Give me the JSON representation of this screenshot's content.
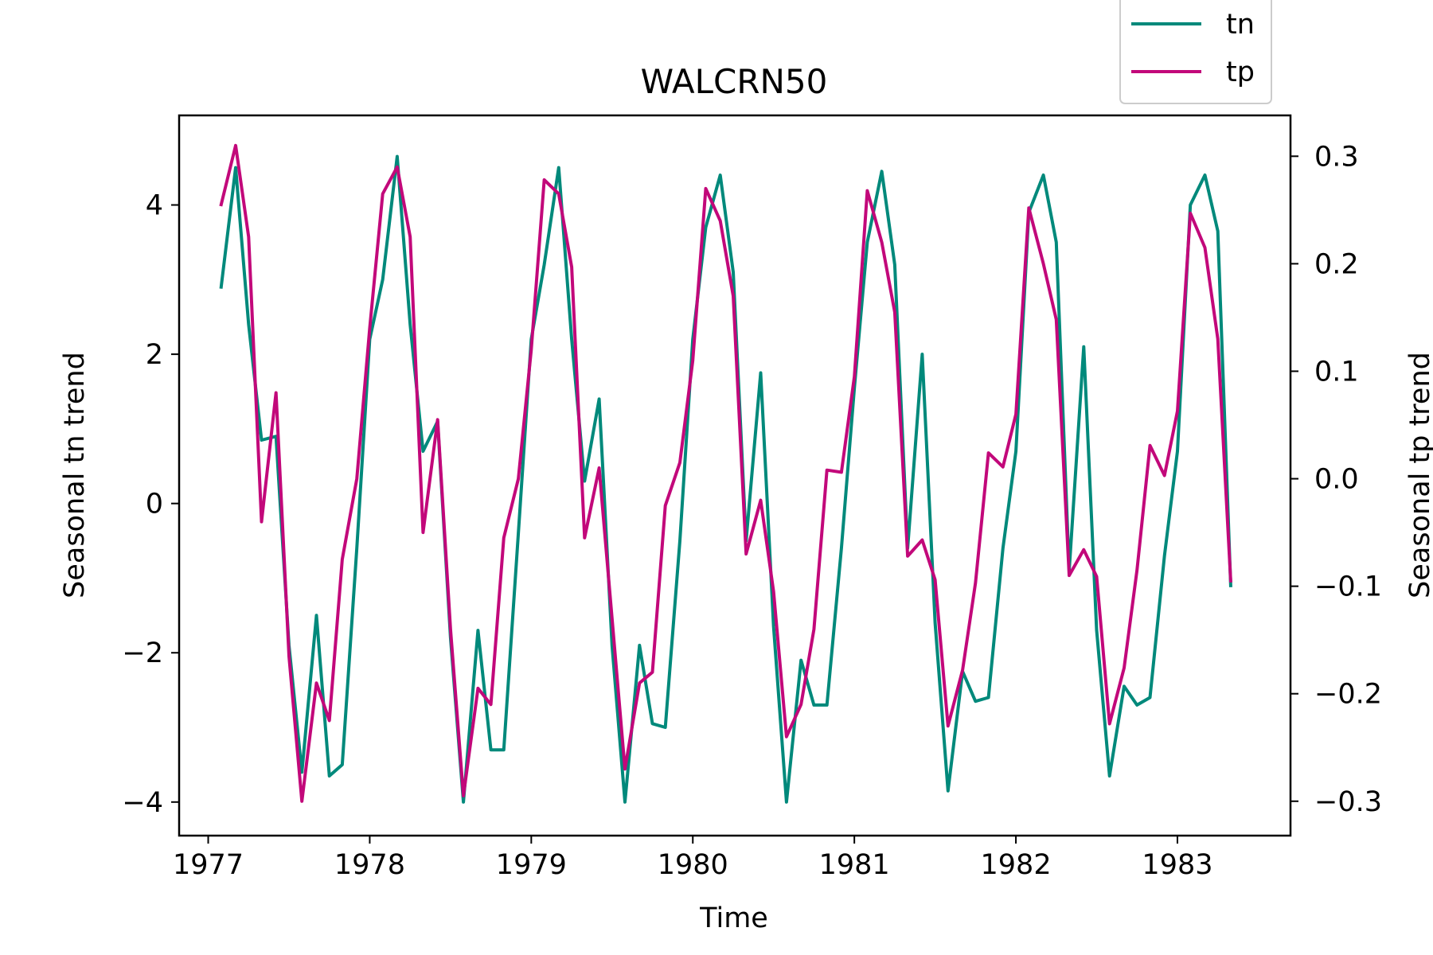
{
  "chart_data": {
    "type": "line",
    "title": "WALCRN50",
    "xlabel": "Time",
    "ylabel_left": "Seasonal tn trend",
    "ylabel_right": "Seasonal tp trend",
    "x_ticks": [
      "1977",
      "1978",
      "1979",
      "1980",
      "1981",
      "1982",
      "1983"
    ],
    "x_tick_values": [
      1977,
      1978,
      1979,
      1980,
      1981,
      1982,
      1983
    ],
    "y_left_ticks": [
      "−4",
      "−2",
      "0",
      "2",
      "4"
    ],
    "y_left_tick_values": [
      -4,
      -2,
      0,
      2,
      4
    ],
    "y_right_ticks": [
      "−0.3",
      "−0.2",
      "−0.1",
      "0.0",
      "0.1",
      "0.2",
      "0.3"
    ],
    "y_right_tick_values": [
      -0.3,
      -0.2,
      -0.1,
      0.0,
      0.1,
      0.2,
      0.3
    ],
    "xlim": [
      1976.82,
      1983.7
    ],
    "ylim_left": [
      -4.45,
      5.2
    ],
    "ylim_right": [
      -0.332,
      0.338
    ],
    "grid": false,
    "legend_placement": "top-right, outside axes",
    "series": [
      {
        "name": "tn",
        "axis": "left",
        "color": "#00897b",
        "x": [
          1977.08,
          1977.17,
          1977.25,
          1977.33,
          1977.42,
          1977.5,
          1977.58,
          1977.67,
          1977.75,
          1977.83,
          1977.92,
          1978.0,
          1978.08,
          1978.17,
          1978.25,
          1978.33,
          1978.42,
          1978.5,
          1978.58,
          1978.67,
          1978.75,
          1978.83,
          1978.92,
          1979.0,
          1979.08,
          1979.17,
          1979.25,
          1979.33,
          1979.42,
          1979.5,
          1979.58,
          1979.67,
          1979.75,
          1979.83,
          1979.92,
          1980.0,
          1980.08,
          1980.17,
          1980.25,
          1980.33,
          1980.42,
          1980.5,
          1980.58,
          1980.67,
          1980.75,
          1980.83,
          1980.92,
          1981.0,
          1981.08,
          1981.17,
          1981.25,
          1981.33,
          1981.42,
          1981.5,
          1981.58,
          1981.67,
          1981.75,
          1981.83,
          1981.92,
          1982.0,
          1982.08,
          1982.17,
          1982.25,
          1982.33,
          1982.42,
          1982.5,
          1982.58,
          1982.67,
          1982.75,
          1982.83,
          1982.92,
          1983.0,
          1983.08,
          1983.17,
          1983.25,
          1983.33
        ],
        "y": [
          2.9,
          4.5,
          2.4,
          0.85,
          0.9,
          -1.9,
          -3.6,
          -1.5,
          -3.65,
          -3.5,
          -0.6,
          2.2,
          3.0,
          4.65,
          2.4,
          0.7,
          1.1,
          -1.8,
          -4.0,
          -1.7,
          -3.3,
          -3.3,
          -0.4,
          2.2,
          3.2,
          4.5,
          2.2,
          0.3,
          1.4,
          -1.9,
          -4.0,
          -1.9,
          -2.95,
          -3.0,
          -0.5,
          2.2,
          3.7,
          4.4,
          3.1,
          -0.5,
          1.75,
          -1.65,
          -4.0,
          -2.1,
          -2.7,
          -2.7,
          -0.6,
          1.55,
          3.5,
          4.45,
          3.2,
          -0.6,
          2.0,
          -1.6,
          -3.85,
          -2.25,
          -2.65,
          -2.6,
          -0.6,
          0.7,
          3.9,
          4.4,
          3.5,
          -0.9,
          2.1,
          -1.7,
          -3.65,
          -2.45,
          -2.7,
          -2.6,
          -0.7,
          0.7,
          4.0,
          4.4,
          3.65,
          -1.1
        ]
      },
      {
        "name": "tp",
        "axis": "right",
        "color": "#c2087a",
        "x": [
          1977.08,
          1977.17,
          1977.25,
          1977.33,
          1977.42,
          1977.5,
          1977.58,
          1977.67,
          1977.75,
          1977.83,
          1977.92,
          1978.0,
          1978.08,
          1978.17,
          1978.25,
          1978.33,
          1978.42,
          1978.5,
          1978.58,
          1978.67,
          1978.75,
          1978.83,
          1978.92,
          1979.0,
          1979.08,
          1979.17,
          1979.25,
          1979.33,
          1979.42,
          1979.5,
          1979.58,
          1979.67,
          1979.75,
          1979.83,
          1979.92,
          1980.0,
          1980.08,
          1980.17,
          1980.25,
          1980.33,
          1980.42,
          1980.5,
          1980.58,
          1980.67,
          1980.75,
          1980.83,
          1980.92,
          1981.0,
          1981.08,
          1981.17,
          1981.25,
          1981.33,
          1981.42,
          1981.5,
          1981.58,
          1981.67,
          1981.75,
          1981.83,
          1981.92,
          1982.0,
          1982.08,
          1982.17,
          1982.25,
          1982.33,
          1982.42,
          1982.5,
          1982.58,
          1982.67,
          1982.75,
          1982.83,
          1982.92,
          1983.0,
          1983.08,
          1983.17,
          1983.25,
          1983.33
        ],
        "y": [
          0.255,
          0.31,
          0.225,
          -0.04,
          0.08,
          -0.165,
          -0.3,
          -0.19,
          -0.225,
          -0.075,
          0.0,
          0.14,
          0.265,
          0.29,
          0.225,
          -0.05,
          0.055,
          -0.14,
          -0.295,
          -0.195,
          -0.21,
          -0.055,
          0.0,
          0.12,
          0.278,
          0.265,
          0.197,
          -0.055,
          0.01,
          -0.13,
          -0.27,
          -0.19,
          -0.18,
          -0.025,
          0.015,
          0.11,
          0.27,
          0.24,
          0.17,
          -0.07,
          -0.02,
          -0.105,
          -0.24,
          -0.21,
          -0.14,
          0.008,
          0.006,
          0.095,
          0.268,
          0.22,
          0.155,
          -0.072,
          -0.057,
          -0.094,
          -0.23,
          -0.178,
          -0.097,
          0.024,
          0.011,
          0.06,
          0.252,
          0.2,
          0.148,
          -0.09,
          -0.066,
          -0.091,
          -0.228,
          -0.176,
          -0.085,
          0.031,
          0.003,
          0.063,
          0.247,
          0.215,
          0.13,
          -0.095
        ]
      }
    ]
  }
}
